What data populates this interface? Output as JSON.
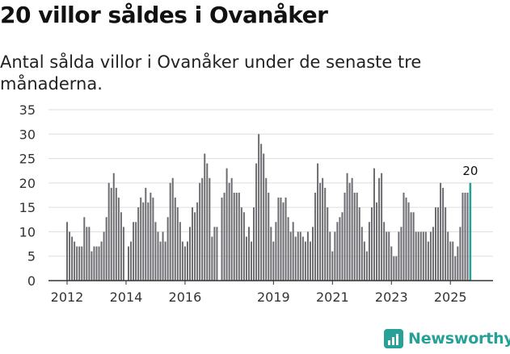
{
  "header": {
    "title": "20 villor såldes i Ovanåker",
    "subtitle": "Antal sålda villor i Ovanåker under de senaste tre månaderna."
  },
  "brand": {
    "name": "Newsworthy",
    "icon": "newsworthy-logo-icon",
    "color": "#27a197"
  },
  "colors": {
    "bar": "#6d6c71",
    "highlight": "#27a197",
    "grid": "#dddddd",
    "axis": "#333333"
  },
  "chart_data": {
    "type": "bar",
    "title": "20 villor såldes i Ovanåker",
    "subtitle": "Antal sålda villor i Ovanåker under de senaste tre månaderna.",
    "xlabel": "",
    "ylabel": "",
    "ylim": [
      0,
      35
    ],
    "yticks": [
      0,
      5,
      10,
      15,
      20,
      25,
      30,
      35
    ],
    "x_start": "2012-01",
    "frequency": "monthly",
    "xtick_labels": [
      {
        "label": "2012",
        "index": 0
      },
      {
        "label": "2014",
        "index": 24
      },
      {
        "label": "2016",
        "index": 48
      },
      {
        "label": "2019",
        "index": 84
      },
      {
        "label": "2021",
        "index": 108
      },
      {
        "label": "2023",
        "index": 132
      },
      {
        "label": "2025",
        "index": 156
      }
    ],
    "grid": true,
    "highlight_label": "20",
    "values": [
      12,
      10,
      9,
      8,
      7,
      7,
      7,
      13,
      11,
      11,
      6,
      7,
      7,
      7,
      8,
      10,
      13,
      20,
      19,
      22,
      19,
      17,
      14,
      11,
      0,
      7,
      8,
      12,
      12,
      15,
      17,
      16,
      19,
      16,
      18,
      17,
      12,
      10,
      8,
      10,
      8,
      13,
      20,
      21,
      17,
      15,
      12,
      8,
      7,
      8,
      11,
      15,
      14,
      16,
      20,
      21,
      26,
      24,
      21,
      9,
      11,
      11,
      0,
      17,
      18,
      23,
      20,
      21,
      18,
      18,
      18,
      15,
      14,
      9,
      11,
      8,
      15,
      24,
      30,
      28,
      26,
      21,
      18,
      11,
      8,
      12,
      17,
      17,
      16,
      17,
      13,
      10,
      12,
      9,
      10,
      10,
      9,
      8,
      10,
      8,
      11,
      18,
      24,
      20,
      21,
      19,
      15,
      10,
      6,
      10,
      12,
      13,
      14,
      18,
      22,
      20,
      21,
      18,
      18,
      15,
      11,
      8,
      6,
      12,
      15,
      23,
      16,
      21,
      22,
      12,
      10,
      10,
      7,
      5,
      5,
      10,
      11,
      18,
      17,
      16,
      14,
      14,
      10,
      10,
      10,
      10,
      10,
      8,
      10,
      11,
      15,
      15,
      20,
      19,
      15,
      10,
      8,
      8,
      5,
      7,
      11,
      18,
      18,
      18,
      20
    ]
  }
}
